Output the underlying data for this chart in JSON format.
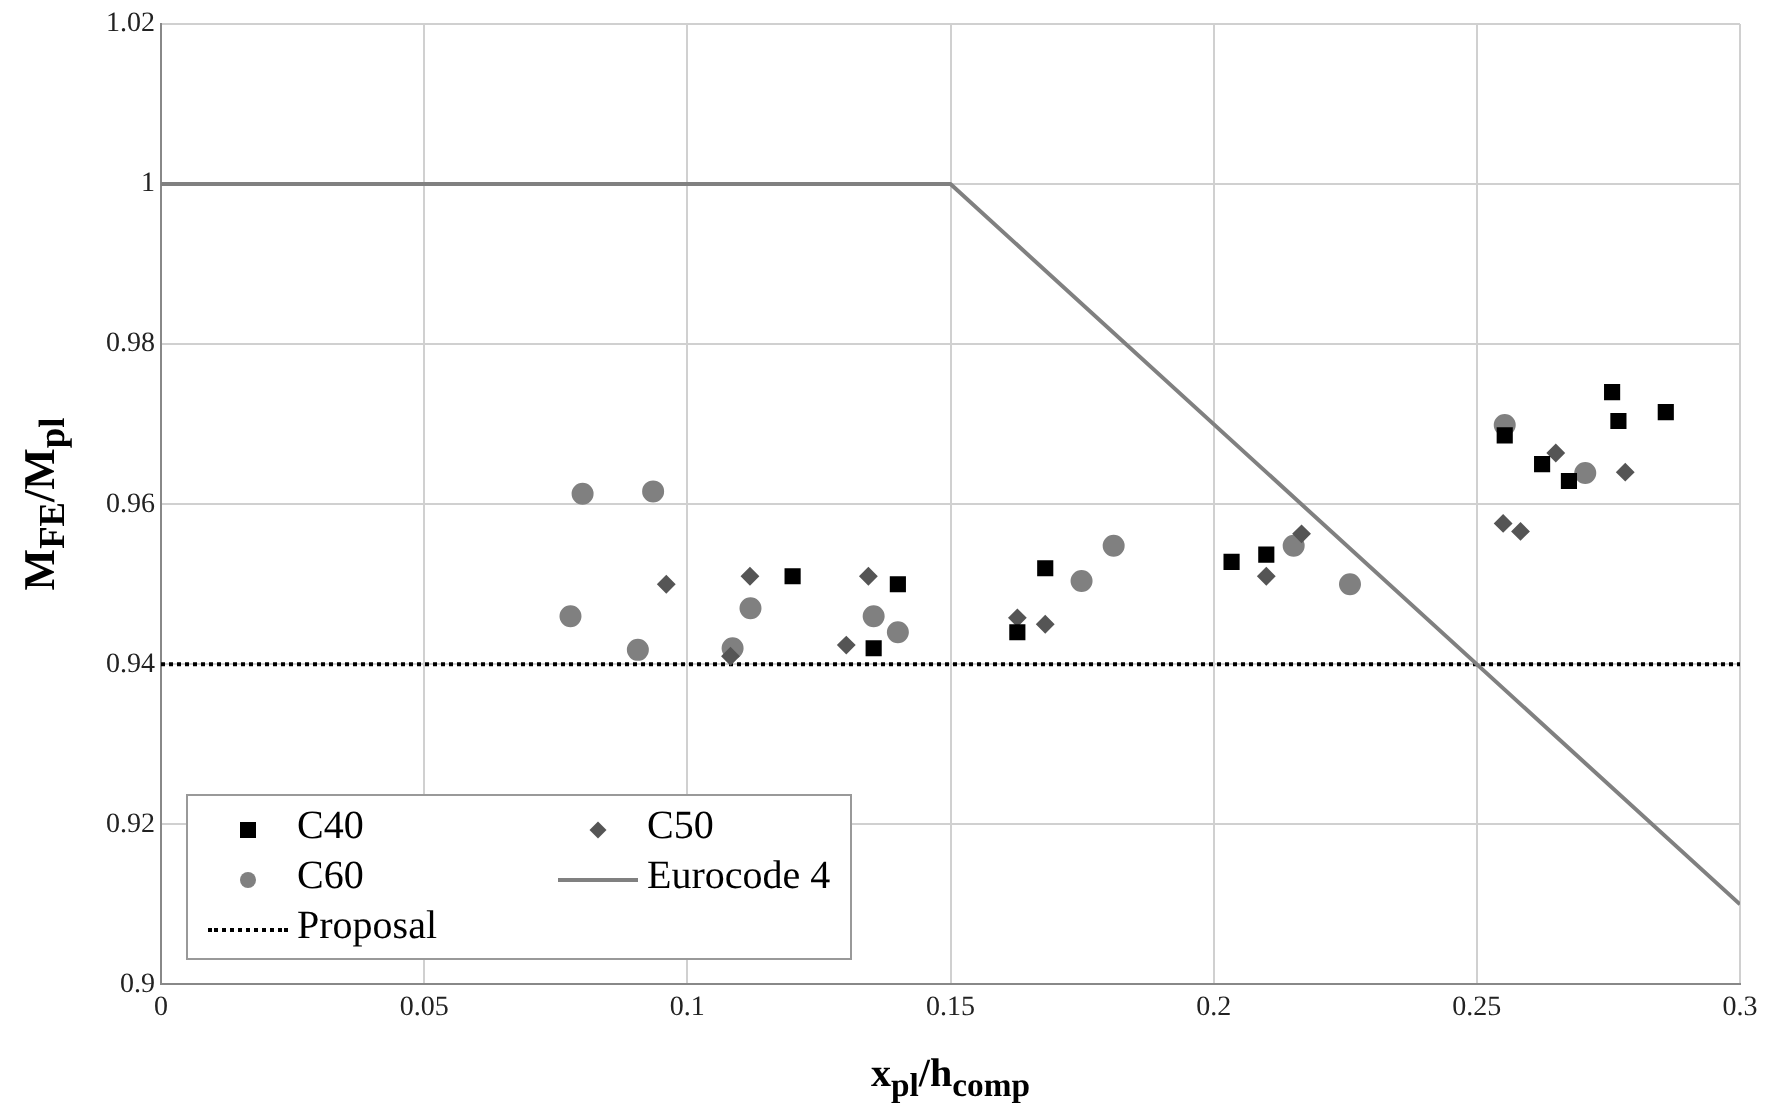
{
  "chart_data": {
    "type": "scatter",
    "xlabel": "x$_{pl}$/h$_{comp}$",
    "ylabel": "M$_{FE}$/M$_{pl}$",
    "xlim": [
      0,
      0.3
    ],
    "xticks": [
      0,
      0.05,
      0.1,
      0.15,
      0.2,
      0.25,
      0.3
    ],
    "ylim": [
      0.9,
      1.02
    ],
    "yticks": [
      0.9,
      0.92,
      0.94,
      0.96,
      0.98,
      1,
      1.02
    ],
    "grid": true,
    "legend": "bottom left",
    "series": [
      {
        "name": "C40",
        "type": "scatter",
        "marker": "square",
        "color": "#000000",
        "x": [
          0.12,
          0.14,
          0.1354,
          0.1627,
          0.168,
          0.2034,
          0.21,
          0.2624,
          0.2675,
          0.2553,
          0.2757,
          0.2769,
          0.2859
        ],
        "values": [
          0.951,
          0.95,
          0.942,
          0.944,
          0.952,
          0.9528,
          0.9537,
          0.965,
          0.9629,
          0.9686,
          0.974,
          0.9704,
          0.9715
        ]
      },
      {
        "name": "C50",
        "type": "scatter",
        "marker": "diamond",
        "color": "#555555",
        "x": [
          0.096,
          0.1119,
          0.1344,
          0.1302,
          0.1082,
          0.1627,
          0.168,
          0.21,
          0.2167,
          0.255,
          0.2583,
          0.2782,
          0.265
        ],
        "values": [
          0.95,
          0.951,
          0.951,
          0.9424,
          0.941,
          0.9458,
          0.945,
          0.951,
          0.9563,
          0.9576,
          0.9566,
          0.964,
          0.9664
        ]
      },
      {
        "name": "C60",
        "type": "scatter",
        "marker": "circle",
        "color": "#808080",
        "x": [
          0.0801,
          0.0935,
          0.0778,
          0.0906,
          0.112,
          0.1086,
          0.1354,
          0.14,
          0.162,
          0.1749,
          0.181,
          0.2152,
          0.2259,
          0.2706,
          0.2553
        ],
        "values": [
          0.9613,
          0.9616,
          0.946,
          0.9418,
          0.947,
          0.942,
          0.946,
          0.944,
          null,
          0.9504,
          0.9548,
          0.9548,
          0.95,
          0.9639,
          0.9699
        ]
      },
      {
        "name": "Eurocode 4",
        "type": "line",
        "marker": "none",
        "line_style": "solid",
        "color": "#808080",
        "x": [
          0,
          0.15,
          0.3
        ],
        "values": [
          1,
          1,
          0.91
        ]
      },
      {
        "name": "Proposal",
        "type": "line",
        "marker": "none",
        "line_style": "dotted",
        "color": "#000000",
        "x": [
          0,
          0.3
        ],
        "values": [
          0.94,
          0.94
        ]
      }
    ]
  }
}
